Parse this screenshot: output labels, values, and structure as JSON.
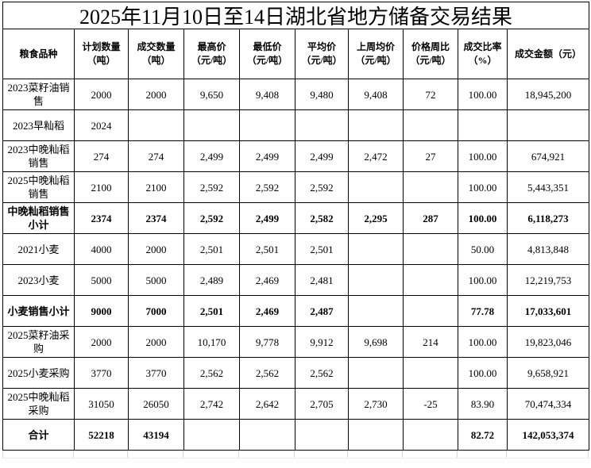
{
  "chart_data": {
    "type": "table",
    "title": "2025年11月10日至14日湖北省地方储备交易结果",
    "columns": [
      "粮食品种",
      "计划数量\n（吨）",
      "成交数量\n（吨）",
      "最高价\n（元/吨）",
      "最低价\n（元/吨）",
      "平均价\n（元/吨）",
      "上周均价\n（元/吨）",
      "价格周比\n（元/吨）",
      "成交比率\n（%）",
      "成交金额（元）"
    ],
    "rows": [
      [
        "2023菜籽油销售",
        "2000",
        "2000",
        "9,650",
        "9,408",
        "9,480",
        "9,408",
        "72",
        "100.00",
        "18,945,200"
      ],
      [
        "2023早籼稻",
        "2024",
        "",
        "",
        "",
        "",
        "",
        "",
        "",
        ""
      ],
      [
        "2023中晚籼稻销售",
        "274",
        "274",
        "2,499",
        "2,499",
        "2,499",
        "2,472",
        "27",
        "100.00",
        "674,921"
      ],
      [
        "2025中晚籼稻销售",
        "2100",
        "2100",
        "2,592",
        "2,592",
        "2,592",
        "",
        "",
        "100.00",
        "5,443,351"
      ],
      [
        "中晚籼稻销售小计",
        "2374",
        "2374",
        "2,592",
        "2,499",
        "2,582",
        "2,295",
        "287",
        "100.00",
        "6,118,273"
      ],
      [
        "2021小麦",
        "4000",
        "2000",
        "2,501",
        "2,501",
        "2,501",
        "",
        "",
        "50.00",
        "4,813,848"
      ],
      [
        "2023小麦",
        "5000",
        "5000",
        "2,489",
        "2,469",
        "2,481",
        "",
        "",
        "100.00",
        "12,219,753"
      ],
      [
        "小麦销售小计",
        "9000",
        "7000",
        "2,501",
        "2,469",
        "2,487",
        "",
        "",
        "77.78",
        "17,033,601"
      ],
      [
        "2025菜籽油采购",
        "2000",
        "2000",
        "10,170",
        "9,778",
        "9,912",
        "9,698",
        "214",
        "100.00",
        "19,823,046"
      ],
      [
        "2025小麦采购",
        "3770",
        "3770",
        "2,562",
        "2,562",
        "2,562",
        "",
        "",
        "100.00",
        "9,658,921"
      ],
      [
        "2025中晚籼稻采购",
        "31050",
        "26050",
        "2,742",
        "2,642",
        "2,705",
        "2,730",
        "-25",
        "83.90",
        "70,474,334"
      ],
      [
        "合计",
        "52218",
        "43194",
        "",
        "",
        "",
        "",
        "",
        "82.72",
        "142,053,374"
      ]
    ],
    "bold_rows": [
      4,
      7,
      11
    ],
    "colors": {
      "border": "#000000",
      "text": "#000000",
      "background": "#ffffff",
      "faint_grid": "#d6d6d6"
    }
  }
}
